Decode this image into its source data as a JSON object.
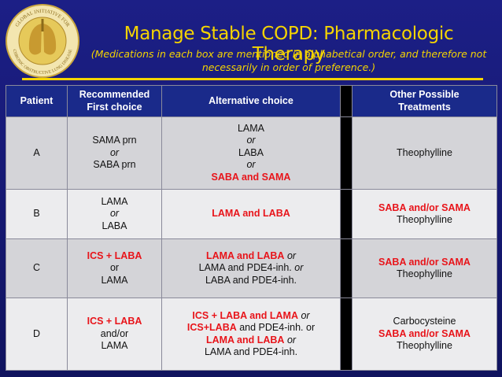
{
  "header": {
    "title": "Manage Stable COPD:  Pharmacologic Therapy",
    "subtitle_lines": [
      "(Medications in each box are mentioned in alphabetical order, and therefore not",
      "necessarily in order of preference.)"
    ],
    "logo_lines": [
      "GLOBAL INITIATIVE FOR",
      "CHRONIC OBSTRUCTIVE LUNG DISEASE"
    ]
  },
  "table": {
    "columns": [
      [
        "Patient"
      ],
      [
        "Recommended",
        "First choice"
      ],
      [
        "Alternative choice"
      ],
      [
        "Other Possible",
        "Treatments"
      ]
    ],
    "rows": [
      {
        "patient": "A",
        "cells": [
          [
            [
              {
                "text": "SAMA prn",
                "style": "plain"
              }
            ],
            [
              {
                "text": "or",
                "style": "italic"
              }
            ],
            [
              {
                "text": "SABA prn",
                "style": "plain"
              }
            ]
          ],
          [
            [
              {
                "text": "LAMA",
                "style": "plain"
              }
            ],
            [
              {
                "text": "or",
                "style": "italic"
              }
            ],
            [
              {
                "text": "LABA",
                "style": "plain"
              }
            ],
            [
              {
                "text": "or",
                "style": "italic"
              }
            ],
            [
              {
                "text": "SABA and SAMA",
                "style": "red"
              }
            ]
          ],
          [
            [
              {
                "text": "Theophylline",
                "style": "plain"
              }
            ]
          ]
        ]
      },
      {
        "patient": "B",
        "cells": [
          [
            [
              {
                "text": "LAMA",
                "style": "plain"
              }
            ],
            [
              {
                "text": "or",
                "style": "italic"
              }
            ],
            [
              {
                "text": "LABA",
                "style": "plain"
              }
            ]
          ],
          [
            [
              {
                "text": "LAMA and LABA",
                "style": "red"
              }
            ]
          ],
          [
            [
              {
                "text": "SABA and/or SAMA",
                "style": "red"
              }
            ],
            [
              {
                "text": "Theophylline",
                "style": "plain"
              }
            ]
          ]
        ]
      },
      {
        "patient": "C",
        "cells": [
          [
            [
              {
                "text": "ICS + LABA",
                "style": "red"
              }
            ],
            [
              {
                "text": "or",
                "style": "plain"
              }
            ],
            [
              {
                "text": "LAMA",
                "style": "plain"
              }
            ]
          ],
          [
            [
              {
                "text": "LAMA and LABA",
                "style": "red"
              },
              {
                "text": " or",
                "style": "italic"
              }
            ],
            [
              {
                "text": "LAMA and PDE4-inh.",
                "style": "plain"
              },
              {
                "text": " or",
                "style": "italic"
              }
            ],
            [
              {
                "text": "LABA and PDE4-inh.",
                "style": "plain"
              }
            ]
          ],
          [
            [
              {
                "text": "SABA and/or SAMA",
                "style": "red"
              }
            ],
            [
              {
                "text": "Theophylline",
                "style": "plain"
              }
            ]
          ]
        ]
      },
      {
        "patient": "D",
        "cells": [
          [
            [
              {
                "text": "ICS + LABA",
                "style": "red"
              }
            ],
            [
              {
                "text": "and/or",
                "style": "plain"
              }
            ],
            [
              {
                "text": "LAMA",
                "style": "plain"
              }
            ]
          ],
          [
            [
              {
                "text": "ICS + LABA and LAMA",
                "style": "red"
              },
              {
                "text": " or",
                "style": "italic"
              }
            ],
            [
              {
                "text": "ICS+LABA",
                "style": "red"
              },
              {
                "text": " and PDE4-inh. or",
                "style": "plain"
              }
            ],
            [
              {
                "text": "LAMA and LABA",
                "style": "red"
              },
              {
                "text": " or",
                "style": "italic"
              }
            ],
            [
              {
                "text": "LAMA and PDE4-inh.",
                "style": "plain"
              }
            ]
          ],
          [
            [
              {
                "text": "Carbocysteine",
                "style": "plain"
              }
            ],
            [
              {
                "text": "SABA and/or SAMA",
                "style": "red"
              }
            ],
            [
              {
                "text": "Theophylline",
                "style": "plain"
              }
            ]
          ]
        ]
      }
    ]
  }
}
